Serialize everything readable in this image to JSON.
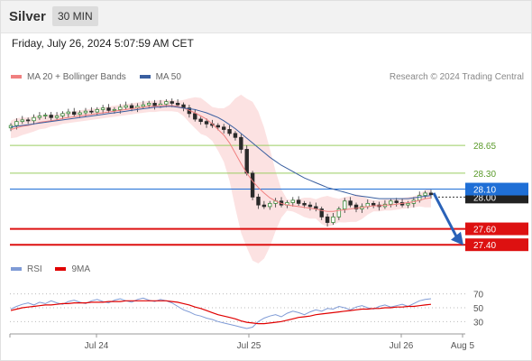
{
  "header": {
    "title": "Silver",
    "timeframe": "30 MIN"
  },
  "datetime": "Friday, July 26, 2024 5:07:59 AM CET",
  "credit": "Research © 2024 Trading Central",
  "legend_main": [
    {
      "label": "MA 20 + Bollinger Bands",
      "color": "#f08080"
    },
    {
      "label": "MA 50",
      "color": "#3a5fa0"
    }
  ],
  "legend_rsi": [
    {
      "label": "RSI",
      "color": "#7f9bd6"
    },
    {
      "label": "9MA",
      "color": "#e00000"
    }
  ],
  "chart_data": [
    {
      "type": "candlestick",
      "title": "Silver",
      "timeframe": "30 MIN",
      "ylim": [
        27.3,
        29.4
      ],
      "x_ticks": [
        "Jul 24",
        "Jul 25",
        "Jul 26",
        "Aug 5"
      ],
      "levels": [
        {
          "value": 28.65,
          "label": "28.65",
          "kind": "resistance",
          "color": "#9acd62"
        },
        {
          "value": 28.3,
          "label": "28.30",
          "kind": "resistance",
          "color": "#9acd62"
        },
        {
          "value": 28.1,
          "label": "28.10",
          "kind": "pivot",
          "color": "#1f6fd6"
        },
        {
          "value": 27.6,
          "label": "27.60",
          "kind": "support",
          "color": "#dd1111"
        },
        {
          "value": 27.4,
          "label": "27.40",
          "kind": "support",
          "color": "#dd1111"
        }
      ],
      "last_price": {
        "value": 28.0,
        "label": "28.00"
      },
      "forecast": {
        "from": 28.05,
        "to": 27.45,
        "direction": "down"
      },
      "close_series": [
        28.9,
        28.95,
        28.97,
        28.96,
        29.0,
        29.02,
        29.03,
        29.0,
        29.02,
        29.05,
        29.07,
        29.04,
        29.06,
        29.08,
        29.07,
        29.1,
        29.12,
        29.09,
        29.1,
        29.13,
        29.15,
        29.12,
        29.14,
        29.16,
        29.18,
        29.15,
        29.17,
        29.2,
        29.18,
        29.16,
        29.12,
        29.05,
        28.98,
        28.95,
        28.92,
        28.9,
        28.88,
        28.85,
        28.8,
        28.75,
        28.6,
        28.3,
        28.0,
        27.9,
        27.88,
        27.92,
        27.95,
        27.9,
        27.93,
        27.96,
        27.92,
        27.9,
        27.88,
        27.85,
        27.75,
        27.68,
        27.75,
        27.85,
        27.95,
        27.9,
        27.85,
        27.88,
        27.92,
        27.9,
        27.88,
        27.91,
        27.95,
        27.93,
        27.9,
        27.92,
        27.96,
        28.02,
        28.05,
        28.03
      ],
      "ma20_series": [
        28.85,
        28.87,
        28.89,
        28.9,
        28.92,
        28.94,
        28.95,
        28.96,
        28.97,
        28.99,
        29.0,
        29.01,
        29.02,
        29.03,
        29.04,
        29.05,
        29.06,
        29.07,
        29.08,
        29.09,
        29.1,
        29.11,
        29.12,
        29.13,
        29.14,
        29.14,
        29.15,
        29.15,
        29.15,
        29.14,
        29.12,
        29.09,
        29.06,
        29.02,
        28.98,
        28.92,
        28.85,
        28.78,
        28.68,
        28.55,
        28.42,
        28.3,
        28.2,
        28.12,
        28.05,
        27.99,
        27.95,
        27.92,
        27.9,
        27.89,
        27.88,
        27.87,
        27.86,
        27.85,
        27.83,
        27.82,
        27.82,
        27.83,
        27.84,
        27.85,
        27.86,
        27.87,
        27.88,
        27.89,
        27.89,
        27.9,
        27.9,
        27.91,
        27.92,
        27.93,
        27.94,
        27.96,
        27.98,
        27.99
      ],
      "ma50_series": [
        28.88,
        28.89,
        28.9,
        28.91,
        28.92,
        28.93,
        28.94,
        28.95,
        28.96,
        28.97,
        28.98,
        28.99,
        29.0,
        29.01,
        29.02,
        29.03,
        29.04,
        29.05,
        29.06,
        29.07,
        29.08,
        29.09,
        29.1,
        29.11,
        29.12,
        29.13,
        29.13,
        29.14,
        29.14,
        29.13,
        29.12,
        29.11,
        29.1,
        29.08,
        29.06,
        29.03,
        29.0,
        28.96,
        28.91,
        28.86,
        28.8,
        28.74,
        28.68,
        28.62,
        28.56,
        28.5,
        28.45,
        28.4,
        28.36,
        28.32,
        28.28,
        28.24,
        28.21,
        28.18,
        28.15,
        28.12,
        28.1,
        28.08,
        28.06,
        28.04,
        28.02,
        28.01,
        28.0,
        27.99,
        27.98,
        27.98,
        27.98,
        27.98,
        27.98,
        27.98,
        27.99,
        28.0,
        28.01,
        28.02
      ]
    },
    {
      "type": "line",
      "title": "RSI",
      "ylim": [
        20,
        80
      ],
      "y_ticks": [
        70,
        50,
        30
      ],
      "series": [
        {
          "name": "RSI",
          "values": [
            48,
            52,
            55,
            57,
            54,
            58,
            56,
            60,
            57,
            55,
            59,
            61,
            58,
            56,
            60,
            62,
            59,
            57,
            61,
            63,
            60,
            58,
            62,
            64,
            61,
            59,
            62,
            60,
            57,
            52,
            47,
            44,
            40,
            38,
            35,
            33,
            30,
            28,
            26,
            24,
            22,
            20,
            22,
            30,
            35,
            38,
            40,
            37,
            42,
            45,
            43,
            40,
            44,
            47,
            45,
            49,
            48,
            52,
            50,
            47,
            51,
            53,
            50,
            48,
            52,
            54,
            51,
            53,
            55,
            52,
            56,
            60,
            62,
            63
          ]
        },
        {
          "name": "9MA",
          "values": [
            46,
            48,
            50,
            51,
            52,
            53,
            54,
            54,
            55,
            56,
            56,
            57,
            57,
            57,
            58,
            58,
            58,
            59,
            59,
            59,
            60,
            60,
            60,
            60,
            60,
            60,
            60,
            60,
            59,
            58,
            56,
            54,
            51,
            49,
            46,
            43,
            40,
            38,
            36,
            34,
            31,
            29,
            28,
            27,
            27,
            28,
            29,
            30,
            32,
            34,
            36,
            37,
            38,
            40,
            41,
            42,
            43,
            44,
            45,
            46,
            47,
            48,
            48,
            49,
            49,
            50,
            50,
            51,
            51,
            52,
            52,
            53,
            54,
            55
          ]
        }
      ]
    }
  ]
}
